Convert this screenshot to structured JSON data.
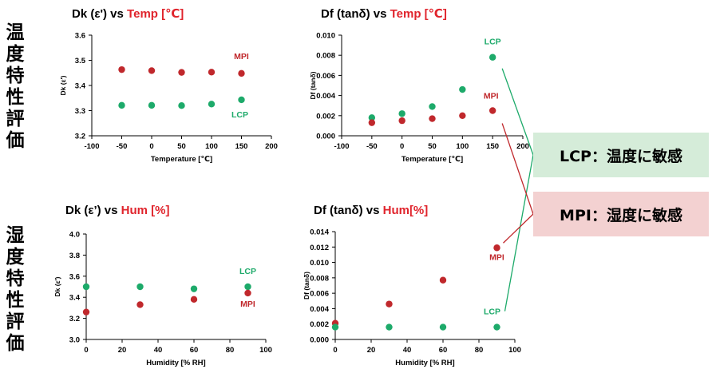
{
  "side_labels": {
    "temp": "温度特性評価",
    "hum": "湿度特性評価"
  },
  "callouts": {
    "lcp": "LCP：温度に敏感",
    "mpi": "MPI：湿度に敏感"
  },
  "colors": {
    "mpi": "#c0282c",
    "lcp": "#1daa6a",
    "accent_red": "#e0242c",
    "lcp_box": "#d5ecd9",
    "mpi_box": "#f3d1d1"
  },
  "chart_data": [
    {
      "type": "scatter",
      "title_prefix": "Dk (ε') vs ",
      "title_suffix": "Temp [℃]",
      "xlabel": "Temperature [℃]",
      "ylabel": "Dk (ε')",
      "xlim": [
        -100,
        200
      ],
      "ylim": [
        3.2,
        3.6
      ],
      "xticks": [
        "-100",
        "-50",
        "0",
        "50",
        "100",
        "150",
        "200"
      ],
      "yticks": [
        "3.2",
        "3.3",
        "3.4",
        "3.5",
        "3.6"
      ],
      "series": [
        {
          "name": "MPI",
          "x": [
            -50,
            0,
            50,
            100,
            150
          ],
          "y": [
            3.463,
            3.459,
            3.452,
            3.453,
            3.448
          ]
        },
        {
          "name": "LCP",
          "x": [
            -50,
            0,
            50,
            100,
            150
          ],
          "y": [
            3.321,
            3.321,
            3.32,
            3.326,
            3.343
          ]
        }
      ]
    },
    {
      "type": "scatter",
      "title_prefix": "Df (tanδ) vs ",
      "title_suffix": "Temp [℃]",
      "xlabel": "Temperature [℃]",
      "ylabel": "Df (tanδ)",
      "xlim": [
        -100,
        200
      ],
      "ylim": [
        0,
        0.01
      ],
      "xticks": [
        "-100",
        "-50",
        "0",
        "50",
        "100",
        "150",
        "200"
      ],
      "yticks": [
        "0.000",
        "0.002",
        "0.004",
        "0.006",
        "0.008",
        "0.010"
      ],
      "series": [
        {
          "name": "LCP",
          "x": [
            -50,
            0,
            50,
            100,
            150
          ],
          "y": [
            0.0018,
            0.0022,
            0.0029,
            0.0046,
            0.0078
          ]
        },
        {
          "name": "MPI",
          "x": [
            -50,
            0,
            50,
            100,
            150
          ],
          "y": [
            0.0013,
            0.0015,
            0.0017,
            0.002,
            0.0025
          ]
        }
      ]
    },
    {
      "type": "scatter",
      "title_prefix": "Dk (ε’) vs ",
      "title_suffix": "Hum [%]",
      "xlabel": "Humidity [% RH]",
      "ylabel": "Dk (ε')",
      "xlim": [
        0,
        100
      ],
      "ylim": [
        3.0,
        4.0
      ],
      "xticks": [
        "0",
        "20",
        "40",
        "60",
        "80",
        "100"
      ],
      "yticks": [
        "3.0",
        "3.2",
        "3.4",
        "3.6",
        "3.8",
        "4.0"
      ],
      "series": [
        {
          "name": "LCP",
          "x": [
            0,
            30,
            60,
            90
          ],
          "y": [
            3.5,
            3.5,
            3.48,
            3.5
          ]
        },
        {
          "name": "MPI",
          "x": [
            0,
            30,
            60,
            90
          ],
          "y": [
            3.26,
            3.33,
            3.38,
            3.44
          ]
        }
      ]
    },
    {
      "type": "scatter",
      "title_prefix": "Df (tanδ) vs ",
      "title_suffix": "Hum[%]",
      "xlabel": "Humidity [% RH]",
      "ylabel": "Df (tanδ)",
      "xlim": [
        0,
        100
      ],
      "ylim": [
        0,
        0.014
      ],
      "xticks": [
        "0",
        "20",
        "40",
        "60",
        "80",
        "100"
      ],
      "yticks": [
        "0.000",
        "0.002",
        "0.004",
        "0.006",
        "0.008",
        "0.010",
        "0.012",
        "0.014"
      ],
      "series": [
        {
          "name": "MPI",
          "x": [
            0,
            30,
            60,
            90
          ],
          "y": [
            0.0021,
            0.0046,
            0.0077,
            0.0119
          ]
        },
        {
          "name": "LCP",
          "x": [
            0,
            30,
            60,
            90
          ],
          "y": [
            0.0016,
            0.0016,
            0.0016,
            0.0016
          ]
        }
      ]
    }
  ]
}
